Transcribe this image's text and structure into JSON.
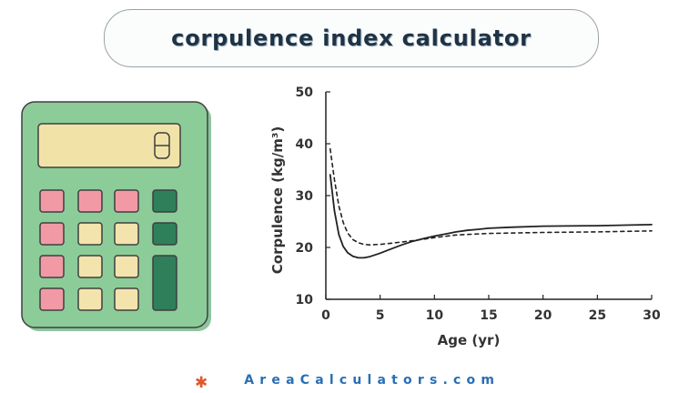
{
  "header": {
    "title": "corpulence index calculator"
  },
  "illustration": {
    "icon": "calculator-icon"
  },
  "chart_data": {
    "type": "line",
    "xlabel": "Age (yr)",
    "ylabel": "Corpulence (kg/m³)",
    "xlim": [
      0,
      30
    ],
    "ylim": [
      10,
      50
    ],
    "xticks": [
      "0",
      "5",
      "10",
      "15",
      "20",
      "25",
      "30"
    ],
    "yticks": [
      "10",
      "20",
      "30",
      "40",
      "50"
    ],
    "grid": false,
    "legend": "none",
    "series": [
      {
        "style": "solid",
        "color": "#222222",
        "x": [
          0.4,
          0.8,
          1.2,
          1.6,
          2.0,
          2.5,
          3.0,
          3.5,
          4.0,
          5.0,
          6.0,
          7.0,
          8.0,
          9.0,
          10.0,
          11.0,
          12.0,
          13.0,
          14.0,
          15.0,
          17.0,
          20.0,
          25.0,
          30.0
        ],
        "y": [
          34.0,
          27.0,
          22.5,
          20.2,
          19.0,
          18.3,
          18.0,
          18.0,
          18.2,
          18.9,
          19.7,
          20.5,
          21.2,
          21.7,
          22.2,
          22.6,
          23.0,
          23.3,
          23.5,
          23.7,
          23.9,
          24.1,
          24.2,
          24.4
        ]
      },
      {
        "style": "dashed",
        "color": "#222222",
        "x": [
          0.4,
          0.8,
          1.2,
          1.6,
          2.0,
          2.5,
          3.0,
          3.5,
          4.0,
          5.0,
          6.0,
          8.0,
          10.0,
          12.0,
          15.0,
          20.0,
          25.0,
          30.0
        ],
        "y": [
          39.0,
          33.0,
          28.0,
          24.8,
          22.8,
          21.5,
          20.9,
          20.6,
          20.5,
          20.6,
          20.8,
          21.3,
          21.9,
          22.4,
          22.7,
          22.9,
          23.0,
          23.2
        ]
      }
    ]
  },
  "footer": {
    "star_icon": "asterisk-icon",
    "site": "AreaCalculators.com"
  }
}
